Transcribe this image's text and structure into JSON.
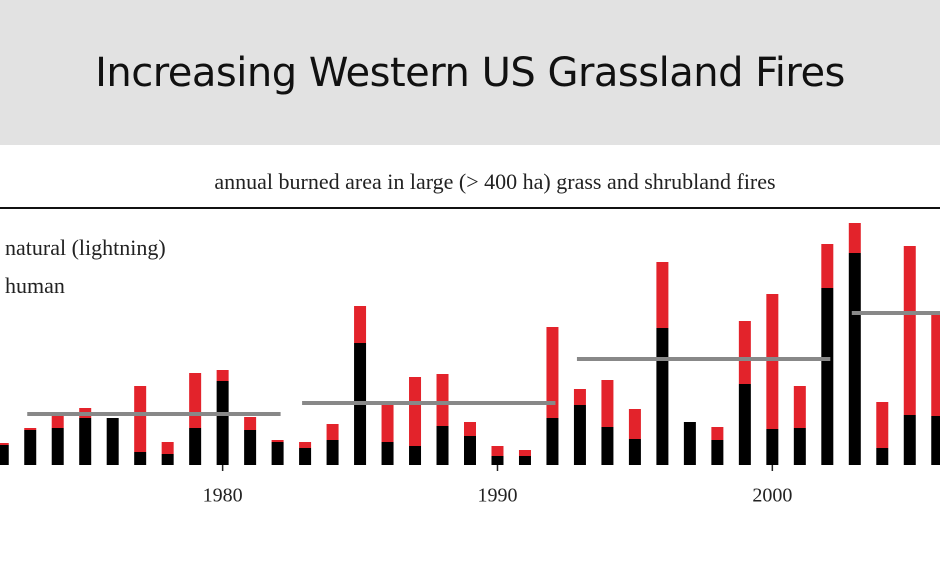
{
  "header": {
    "title": "Increasing Western US Grassland Fires"
  },
  "chart_data": {
    "type": "stacked-bar",
    "title": "annual burned area in large (> 400 ha) grass and shrubland fires",
    "x": [
      1972,
      1973,
      1974,
      1975,
      1976,
      1977,
      1978,
      1979,
      1980,
      1981,
      1982,
      1983,
      1984,
      1985,
      1986,
      1987,
      1988,
      1989,
      1990,
      1991,
      1992,
      1993,
      1994,
      1995,
      1996,
      1997,
      1998,
      1999,
      2000,
      2001,
      2002,
      2003,
      2004,
      2005,
      2006
    ],
    "series": [
      {
        "name": "human",
        "color": "#000000",
        "values": [
          20,
          35,
          37,
          47,
          47,
          13,
          11,
          37,
          84,
          35,
          23,
          17,
          25,
          122,
          23,
          19,
          39,
          29,
          9,
          9,
          47,
          60,
          38,
          26,
          137,
          43,
          25,
          81,
          36,
          37,
          177,
          212,
          17,
          50,
          49
        ]
      },
      {
        "name": "natural (lightning)",
        "color": "#e3232b",
        "values": [
          2,
          2,
          16,
          10,
          0,
          66,
          12,
          55,
          11,
          13,
          2,
          6,
          16,
          37,
          38,
          69,
          52,
          14,
          10,
          6,
          91,
          16,
          47,
          30,
          66,
          0,
          13,
          63,
          135,
          42,
          44,
          30,
          46,
          169,
          101
        ]
      }
    ],
    "averages": {
      "color": "#888888",
      "segments": [
        {
          "from": 1973,
          "to": 1982,
          "value": 51
        },
        {
          "from": 1983,
          "to": 1992,
          "value": 62
        },
        {
          "from": 1993,
          "to": 2002,
          "value": 106
        },
        {
          "from": 2003,
          "to": 2006,
          "value": 152
        }
      ]
    },
    "xlim": [
      1971.9,
      2006.1
    ],
    "xticks": [
      1980,
      1990,
      2000
    ],
    "ylim": [
      0,
      250
    ]
  }
}
